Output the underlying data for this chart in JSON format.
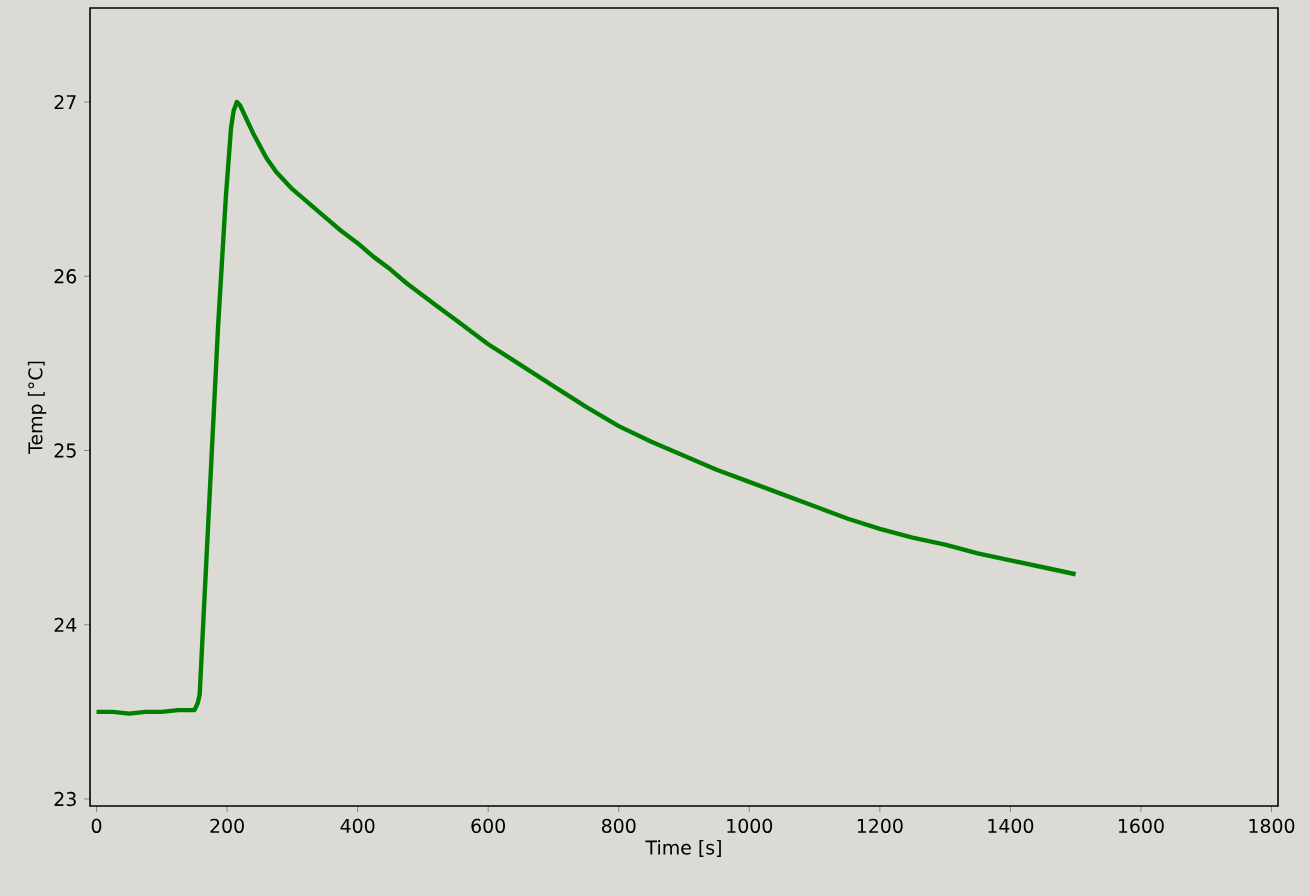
{
  "chart_data": {
    "type": "line",
    "xlabel": "Time [s]",
    "ylabel": "Temp [°C]",
    "color": "#008000",
    "grid": false,
    "line_style": "solid",
    "xlim": [
      -10,
      1810
    ],
    "ylim": [
      22.96,
      27.54
    ],
    "xticks": [
      0,
      200,
      400,
      600,
      800,
      1000,
      1200,
      1400,
      1600,
      1800
    ],
    "yticks": [
      23,
      24,
      25,
      26,
      27
    ],
    "x": [
      0,
      25,
      50,
      75,
      100,
      125,
      150,
      155,
      158,
      162,
      166,
      170,
      174,
      178,
      182,
      186,
      190,
      194,
      198,
      202,
      206,
      210,
      215,
      220,
      230,
      240,
      250,
      260,
      275,
      300,
      325,
      350,
      375,
      400,
      425,
      450,
      475,
      500,
      525,
      550,
      575,
      600,
      650,
      700,
      750,
      800,
      850,
      900,
      950,
      1000,
      1050,
      1100,
      1150,
      1200,
      1250,
      1300,
      1350,
      1400,
      1450,
      1500
    ],
    "values": [
      23.5,
      23.5,
      23.49,
      23.5,
      23.5,
      23.51,
      23.51,
      23.55,
      23.6,
      23.9,
      24.2,
      24.5,
      24.8,
      25.1,
      25.4,
      25.7,
      25.95,
      26.2,
      26.45,
      26.65,
      26.85,
      26.95,
      27.0,
      26.98,
      26.9,
      26.82,
      26.75,
      26.68,
      26.6,
      26.5,
      26.42,
      26.34,
      26.26,
      26.19,
      26.11,
      26.04,
      25.96,
      25.89,
      25.82,
      25.75,
      25.68,
      25.61,
      25.49,
      25.37,
      25.25,
      25.14,
      25.05,
      24.97,
      24.89,
      24.82,
      24.75,
      24.68,
      24.61,
      24.55,
      24.5,
      24.46,
      24.41,
      24.37,
      24.33,
      24.29
    ]
  }
}
